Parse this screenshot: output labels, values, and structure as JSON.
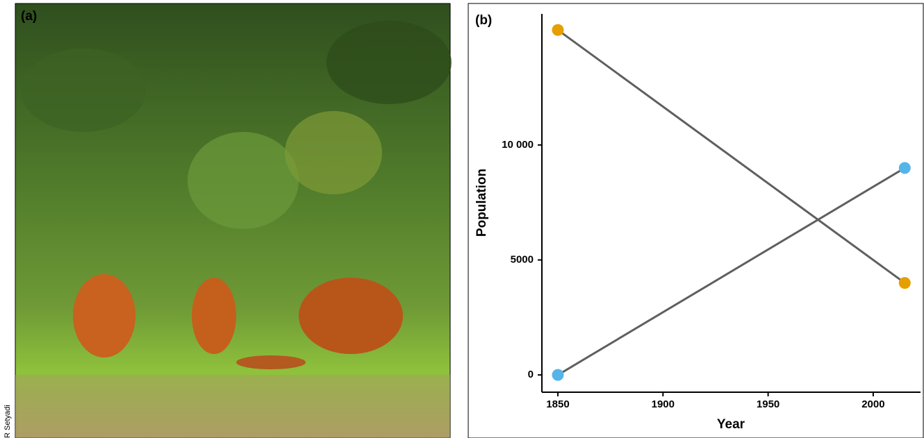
{
  "panel_a": {
    "label": "(a)",
    "credit": "R Setyadi"
  },
  "chart_data": {
    "type": "line",
    "label": "(b)",
    "x_label": "Year",
    "y_label": "Population",
    "x": [
      1850,
      2015
    ],
    "series": [
      {
        "color": "#E69F00",
        "values": [
          15000,
          4000
        ]
      },
      {
        "color": "#56B4E9",
        "values": [
          0,
          9000
        ]
      }
    ],
    "line_color": "#5f5f5f",
    "xlim": [
      1842.4,
      2022.5
    ],
    "xticks": [
      1850,
      1900,
      1950,
      2000
    ],
    "ylim": [
      -750,
      15700
    ],
    "yticks": [
      0,
      5000,
      {
        "value": 10000,
        "label": "10 000"
      }
    ],
    "grid": false
  }
}
